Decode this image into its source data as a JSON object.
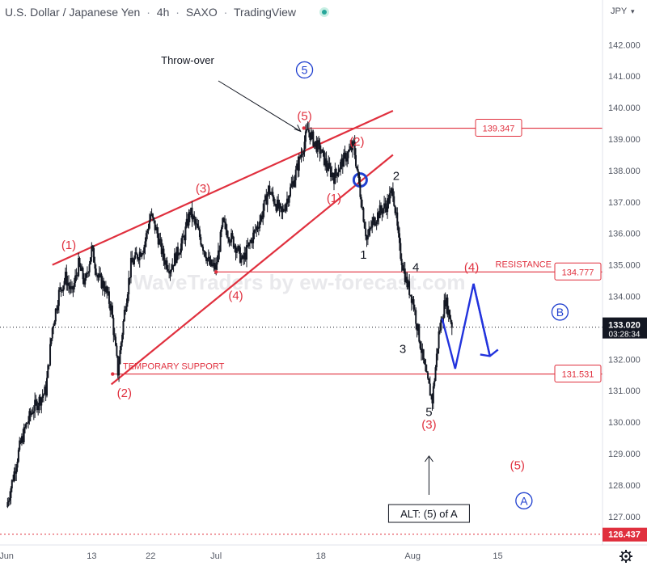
{
  "header": {
    "symbol": "U.S. Dollar / Japanese Yen",
    "interval": "4h",
    "exchange": "SAXO",
    "platform": "TradingView",
    "currency": "JPY"
  },
  "watermark": "WaveTraders by ew-forecast.com",
  "colors": {
    "candle": "#131722",
    "red": "#e0303e",
    "blue": "#1f3fcf",
    "wave_arrow": "#2233dd",
    "text": "#131722",
    "axis_text": "#555a66",
    "price_tag_bg": "#131722"
  },
  "chart_data": {
    "type": "candlestick",
    "y_axis": {
      "range": [
        126.3,
        142.6
      ],
      "ticks": [
        "142.000",
        "141.000",
        "140.000",
        "139.000",
        "138.000",
        "137.000",
        "136.000",
        "135.000",
        "134.000",
        "133.000",
        "132.000",
        "131.000",
        "130.000",
        "129.000",
        "128.000",
        "127.000"
      ]
    },
    "x_axis": {
      "ticks": [
        "Jun",
        "13",
        "22",
        "Jul",
        "18",
        "Aug",
        "15"
      ],
      "tick_index": [
        0,
        13,
        22,
        32,
        48,
        62,
        75
      ],
      "domain": [
        -0.5,
        90.5
      ]
    },
    "price_path": [
      [
        0,
        127.3
      ],
      [
        2,
        129.2
      ],
      [
        3,
        129.9
      ],
      [
        4,
        130.4
      ],
      [
        6,
        131.0
      ],
      [
        7,
        133.0
      ],
      [
        8,
        134.1
      ],
      [
        9,
        134.6
      ],
      [
        10,
        134.1
      ],
      [
        11,
        135.0
      ],
      [
        12,
        134.4
      ],
      [
        13,
        135.5
      ],
      [
        14,
        134.6
      ],
      [
        15,
        134.3
      ],
      [
        16,
        133.6
      ],
      [
        17,
        131.6
      ],
      [
        18,
        133.5
      ],
      [
        19,
        135.0
      ],
      [
        21,
        135.6
      ],
      [
        22,
        136.6
      ],
      [
        23,
        136.0
      ],
      [
        24,
        135.2
      ],
      [
        25,
        134.9
      ],
      [
        27,
        135.8
      ],
      [
        28,
        136.7
      ],
      [
        29,
        136.2
      ],
      [
        31,
        135.0
      ],
      [
        32,
        134.9
      ],
      [
        33,
        136.3
      ],
      [
        35,
        135.6
      ],
      [
        36,
        135.1
      ],
      [
        38,
        136.1
      ],
      [
        39,
        136.6
      ],
      [
        40,
        137.4
      ],
      [
        41,
        137.0
      ],
      [
        42,
        136.6
      ],
      [
        44,
        137.8
      ],
      [
        46,
        139.3
      ],
      [
        47,
        138.9
      ],
      [
        48,
        138.6
      ],
      [
        49,
        138.1
      ],
      [
        50,
        137.8
      ],
      [
        51,
        138.2
      ],
      [
        52,
        138.5
      ],
      [
        53,
        138.8
      ],
      [
        54,
        137.3
      ],
      [
        55,
        135.8
      ],
      [
        56,
        136.4
      ],
      [
        57,
        136.7
      ],
      [
        58,
        136.9
      ],
      [
        59,
        137.4
      ],
      [
        60,
        135.5
      ],
      [
        61,
        134.5
      ],
      [
        62,
        133.9
      ],
      [
        63,
        132.7
      ],
      [
        64,
        131.5
      ],
      [
        65,
        130.7
      ],
      [
        66,
        132.8
      ],
      [
        67,
        133.9
      ],
      [
        68,
        133.1
      ]
    ],
    "last_price": "133.020",
    "countdown": "03:28:34",
    "bottom_tag": "126.437",
    "levels": [
      {
        "price": 139.347,
        "label": "139.347",
        "name": "",
        "style": "solid"
      },
      {
        "price": 134.777,
        "label": "134.777",
        "name": "RESISTANCE",
        "style": "solid"
      },
      {
        "price": 131.531,
        "label": "131.531",
        "name": "TEMPORARY SUPPORT",
        "style": "solid"
      }
    ],
    "wave_labels": [
      {
        "text": "(1)",
        "x": 9.5,
        "y": 135.5,
        "color": "red"
      },
      {
        "text": "(2)",
        "x": 18,
        "y": 130.8,
        "color": "red"
      },
      {
        "text": "(3)",
        "x": 30,
        "y": 137.3,
        "color": "red"
      },
      {
        "text": "(4)",
        "x": 35,
        "y": 133.9,
        "color": "red"
      },
      {
        "text": "(5)",
        "x": 45.5,
        "y": 139.6,
        "color": "red"
      },
      {
        "text": "(2)",
        "x": 53.5,
        "y": 138.8,
        "color": "red"
      },
      {
        "text": "(1)",
        "x": 50,
        "y": 137.0,
        "color": "red"
      },
      {
        "text": "(4)",
        "x": 71,
        "y": 134.8,
        "color": "red"
      },
      {
        "text": "(3)",
        "x": 64.5,
        "y": 129.8,
        "color": "red"
      },
      {
        "text": "(5)",
        "x": 78,
        "y": 128.5,
        "color": "red"
      },
      {
        "text": "1",
        "x": 54.5,
        "y": 135.2,
        "color": "black"
      },
      {
        "text": "2",
        "x": 59.5,
        "y": 137.7,
        "color": "black"
      },
      {
        "text": "3",
        "x": 60.5,
        "y": 132.2,
        "color": "black"
      },
      {
        "text": "4",
        "x": 62.5,
        "y": 134.8,
        "color": "black"
      },
      {
        "text": "5",
        "x": 64.5,
        "y": 130.2,
        "color": "black"
      }
    ],
    "circled_labels": [
      {
        "text": "5",
        "x": 45.5,
        "y": 141.2
      },
      {
        "text": "B",
        "x": 84.5,
        "y": 133.5
      },
      {
        "text": "A",
        "x": 79,
        "y": 127.5
      }
    ],
    "annotations": {
      "throw_over": "Throw-over",
      "alt_note": "ALT: (5) of A"
    },
    "projection": [
      [
        66.5,
        133.3
      ],
      [
        68.5,
        131.7
      ],
      [
        71.3,
        134.4
      ],
      [
        73.8,
        132.1
      ],
      [
        75,
        132.5
      ]
    ]
  }
}
